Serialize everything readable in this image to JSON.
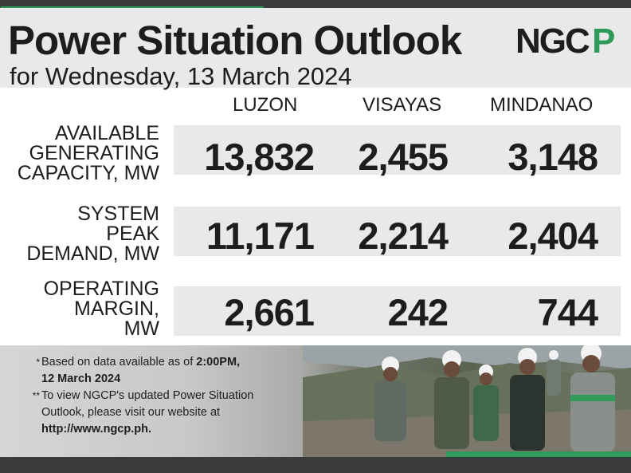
{
  "header": {
    "title": "Power Situation Outlook",
    "subtitle": "for Wednesday, 13 March 2024",
    "logo_text": "NGCP",
    "brand_color": "#2e9b5a"
  },
  "columns": [
    "LUZON",
    "VISAYAS",
    "MINDANAO"
  ],
  "rows": [
    {
      "label_lines": [
        "AVAILABLE",
        "GENERATING",
        "CAPACITY, MW"
      ],
      "values": [
        "13,832",
        "2,455",
        "3,148"
      ]
    },
    {
      "label_lines": [
        "SYSTEM",
        "PEAK",
        "DEMAND, MW"
      ],
      "values": [
        "11,171",
        "2,214",
        "2,404"
      ]
    },
    {
      "label_lines": [
        "OPERATING",
        "MARGIN,",
        "MW"
      ],
      "values": [
        "2,661",
        "242",
        "744"
      ]
    }
  ],
  "notes": [
    {
      "mark": "*",
      "text": "Based on data available as of ",
      "bold": "2:00PM,",
      "line2_bold": "12 March 2024"
    },
    {
      "mark": "**",
      "text": "To view NGCP's updated Power Situation",
      "line2": "Outlook, please visit our website at",
      "line3_bold": "http://www.ngcp.ph."
    }
  ]
}
